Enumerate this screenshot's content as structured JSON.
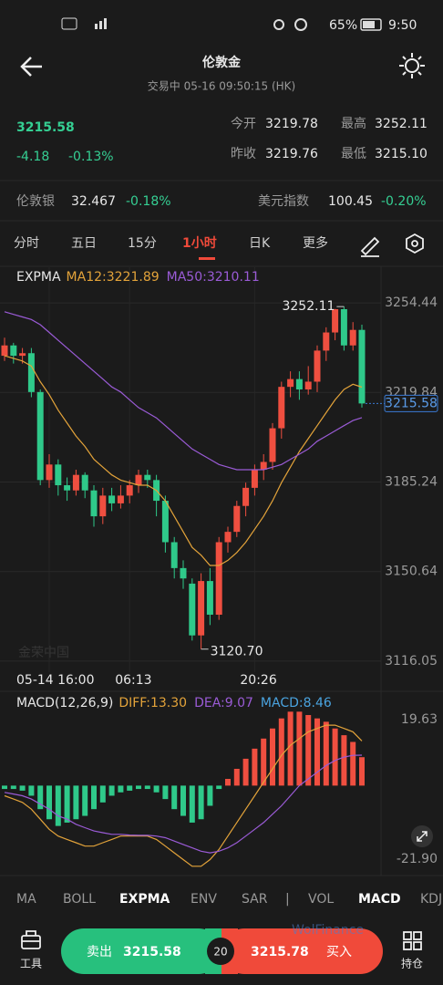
{
  "status_bar": {
    "battery": "65%",
    "time": "9:50"
  },
  "header": {
    "title": "伦敦金",
    "subtitle": "交易中  05-16 09:50:15 (HK)"
  },
  "quote": {
    "price": "3215.58",
    "change": "-4.18",
    "change_pct": "-0.13%",
    "stats": [
      {
        "label": "今开",
        "value": "3219.78"
      },
      {
        "label": "最高",
        "value": "3252.11"
      },
      {
        "label": "昨收",
        "value": "3219.76"
      },
      {
        "label": "最低",
        "value": "3215.10"
      }
    ]
  },
  "related": [
    {
      "name": "伦敦银",
      "value": "32.467",
      "pct": "-0.18%"
    },
    {
      "name": "美元指数",
      "value": "100.45",
      "pct": "-0.20%"
    }
  ],
  "period_tabs": [
    "分时",
    "五日",
    "15分",
    "1小时",
    "日K",
    "更多"
  ],
  "indicator_tabs": [
    "MA",
    "BOLL",
    "EXPMA",
    "ENV",
    "SAR",
    "VOL",
    "MACD",
    "KDJ"
  ],
  "watermarks": [
    "金荣中国",
    "WolFinance"
  ],
  "bottom_bar": {
    "tools": "工具",
    "sell": "卖出",
    "sell_price": "3215.58",
    "lots": "20",
    "buy_price": "3215.78",
    "buy": "买入",
    "positions": "持仓"
  },
  "chart_data": [
    {
      "type": "candlestick",
      "title": "EXPMA",
      "up_color": "#ef4f40",
      "down_color": "#2fc98a",
      "categories": [
        null,
        null,
        null,
        null,
        null,
        "05-14 16:00",
        null,
        null,
        null,
        null,
        null,
        null,
        null,
        null,
        "06:13",
        null,
        null,
        null,
        null,
        null,
        null,
        null,
        null,
        null,
        null,
        null,
        null,
        null,
        "20:26",
        null,
        null,
        null,
        null,
        null,
        null,
        null,
        null,
        null,
        null,
        null,
        null
      ],
      "open": [
        3234,
        3238,
        3234,
        3235,
        3220,
        3186,
        3192,
        3184,
        3182,
        3188,
        3182,
        3172,
        3180,
        3177,
        3180,
        3184,
        3188,
        3186,
        3178,
        3162,
        3152,
        3146,
        3126,
        3147,
        3134,
        3162,
        3166,
        3176,
        3183,
        3190,
        3193,
        3206,
        3222,
        3225,
        3221,
        3224,
        3236,
        3243,
        3252,
        3238,
        3244
      ],
      "high": [
        3241,
        3239,
        3237,
        3237,
        3221,
        3196,
        3194,
        3187,
        3190,
        3189,
        3184,
        3183,
        3183,
        3184,
        3186,
        3190,
        3190,
        3188,
        3180,
        3164,
        3155,
        3148,
        3150,
        3152,
        3164,
        3168,
        3178,
        3185,
        3192,
        3196,
        3208,
        3224,
        3228,
        3228,
        3230,
        3238,
        3245,
        3252.11,
        3253,
        3247,
        3246
      ],
      "low": [
        3232,
        3231,
        3231,
        3218,
        3184,
        3183,
        3180,
        3178,
        3180,
        3179,
        3168,
        3169,
        3174,
        3175,
        3177,
        3181,
        3183,
        3172,
        3158,
        3148,
        3144,
        3124,
        3120.7,
        3130,
        3132,
        3158,
        3164,
        3172,
        3180,
        3186,
        3190,
        3202,
        3218,
        3217,
        3219,
        3220,
        3232,
        3240,
        3236,
        3236,
        3214
      ],
      "close": [
        3238,
        3234,
        3235,
        3220,
        3186,
        3192,
        3184,
        3182,
        3188,
        3182,
        3172,
        3180,
        3177,
        3180,
        3184,
        3188,
        3186,
        3178,
        3162,
        3152,
        3148,
        3126,
        3147,
        3134,
        3162,
        3166,
        3176,
        3183,
        3190,
        3193,
        3206,
        3222,
        3225,
        3221,
        3224,
        3236,
        3243,
        3252,
        3238,
        3244,
        3215.58
      ],
      "series": [
        {
          "name": "MA12:3221.89",
          "color": "#e3a33a",
          "values": [
            3234,
            3233,
            3232,
            3230,
            3224,
            3219,
            3213,
            3208,
            3203,
            3199,
            3194,
            3191,
            3188,
            3186,
            3185,
            3184,
            3184,
            3182,
            3178,
            3172,
            3166,
            3160,
            3157,
            3153,
            3153,
            3155,
            3158,
            3162,
            3167,
            3172,
            3178,
            3185,
            3191,
            3197,
            3202,
            3207,
            3212,
            3217,
            3221,
            3223,
            3221.89
          ]
        },
        {
          "name": "MA50:3210.11",
          "color": "#9a5bd6",
          "values": [
            3251,
            3250,
            3249,
            3248,
            3246,
            3243,
            3240,
            3237,
            3234,
            3231,
            3228,
            3225,
            3222,
            3220,
            3217,
            3214,
            3212,
            3210,
            3207,
            3204,
            3201,
            3198,
            3196,
            3194,
            3192,
            3191,
            3190,
            3190,
            3190,
            3190,
            3191,
            3192,
            3194,
            3196,
            3198,
            3201,
            3203,
            3205,
            3207,
            3209,
            3210.11
          ]
        }
      ],
      "high_label": "3252.11",
      "low_label": "3120.70",
      "last_price_label": "3215.58",
      "ylim": [
        3111.8,
        3268.2
      ],
      "yticks": [
        3116.05,
        3150.64,
        3185.24,
        3219.84,
        3254.44
      ],
      "grid": true
    },
    {
      "type": "macd",
      "title": "MACD(12,26,9)",
      "up_color": "#ef4f40",
      "down_color": "#2fc98a",
      "series": [
        {
          "name": "DIFF:13.30",
          "color": "#e3a33a",
          "values": [
            -3,
            -4,
            -5,
            -7,
            -10,
            -13,
            -15,
            -16,
            -17,
            -18,
            -18,
            -17,
            -16,
            -15,
            -15,
            -15,
            -15,
            -16,
            -18,
            -20,
            -22,
            -24,
            -24,
            -22,
            -19,
            -15,
            -11,
            -7,
            -3,
            1,
            5,
            9,
            12,
            14,
            16,
            17,
            18,
            18,
            17,
            16,
            13.3
          ]
        },
        {
          "name": "DEA:9.07",
          "color": "#9a5bd6",
          "values": [
            -2,
            -2.5,
            -3,
            -4,
            -5.5,
            -7,
            -9,
            -10,
            -11.5,
            -12.5,
            -13.5,
            -14,
            -14.5,
            -14.5,
            -14.7,
            -14.8,
            -14.8,
            -15,
            -15.5,
            -16.5,
            -17.5,
            -18.5,
            -19.5,
            -20,
            -19.5,
            -18.5,
            -17,
            -15,
            -13,
            -11,
            -8.5,
            -6,
            -3,
            0,
            2,
            4,
            6,
            7.5,
            8.5,
            9,
            9.07
          ]
        },
        {
          "name": "MACD:8.46",
          "color": "#4aa3df",
          "values": [
            -1,
            -1,
            -1.5,
            -3,
            -7,
            -10,
            -12,
            -11,
            -10,
            -9,
            -7,
            -5,
            -3,
            -2,
            -1.5,
            -1,
            -1,
            -2,
            -4,
            -7,
            -9,
            -11,
            -10,
            -6,
            -1,
            2,
            5,
            8,
            11,
            14,
            17,
            20,
            22,
            22,
            21,
            20,
            19,
            17,
            15,
            13,
            8.46
          ]
        }
      ],
      "ylim": [
        -25.4,
        24.8
      ],
      "yticks": [
        {
          "value": -21.9,
          "label": "-21.90"
        },
        19.63
      ]
    }
  ]
}
